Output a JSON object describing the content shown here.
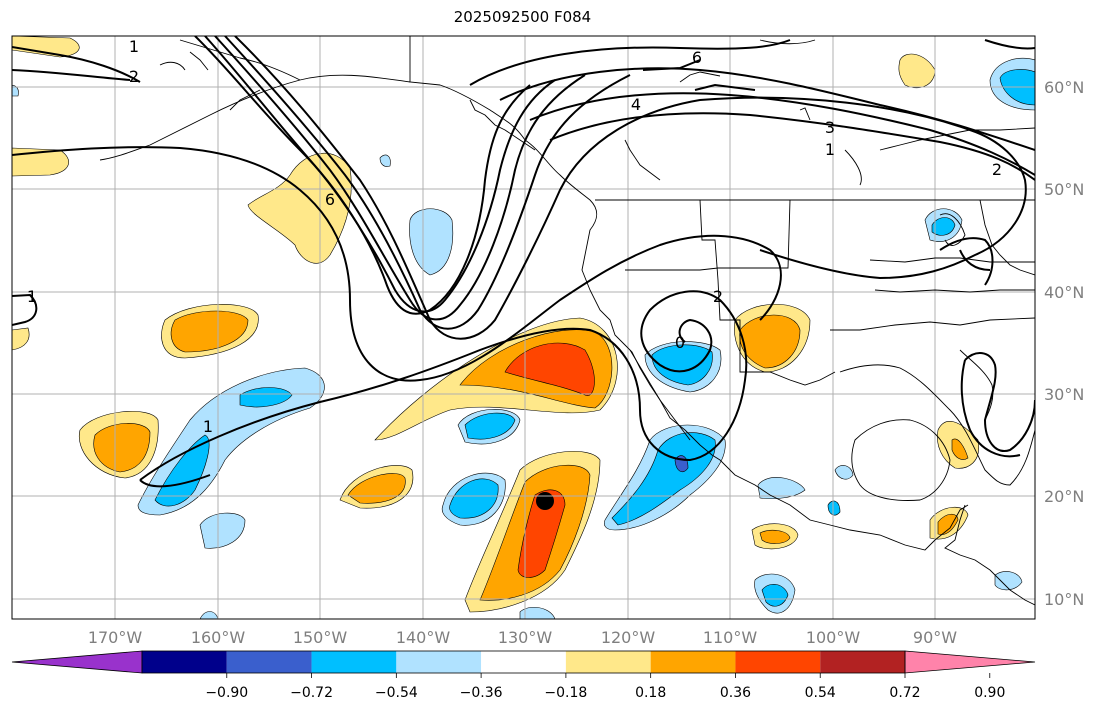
{
  "title": "2025092500 F084",
  "longitude_labels": [
    "170°W",
    "160°W",
    "150°W",
    "140°W",
    "130°W",
    "120°W",
    "110°W",
    "100°W",
    "90°W"
  ],
  "latitude_labels": [
    "60°N",
    "50°N",
    "40°N",
    "30°N",
    "20°N",
    "10°N"
  ],
  "colorbar": {
    "tick_labels": [
      "−0.90",
      "−0.72",
      "−0.54",
      "−0.36",
      "−0.18",
      "0.18",
      "0.36",
      "0.54",
      "0.72",
      "0.90"
    ],
    "colors": [
      "#9932cc",
      "#00008b",
      "#3a5fcd",
      "#00bfff",
      "#b0e2ff",
      "#ffffff",
      "#ffe88a",
      "#ffa500",
      "#ff4500",
      "#b22222",
      "#ff83aa"
    ]
  },
  "contour_labels": [
    "1",
    "2",
    "6",
    "4",
    "3",
    "1",
    "2",
    "6",
    "1",
    "1",
    "2",
    "0"
  ],
  "marker": "storm-center"
}
